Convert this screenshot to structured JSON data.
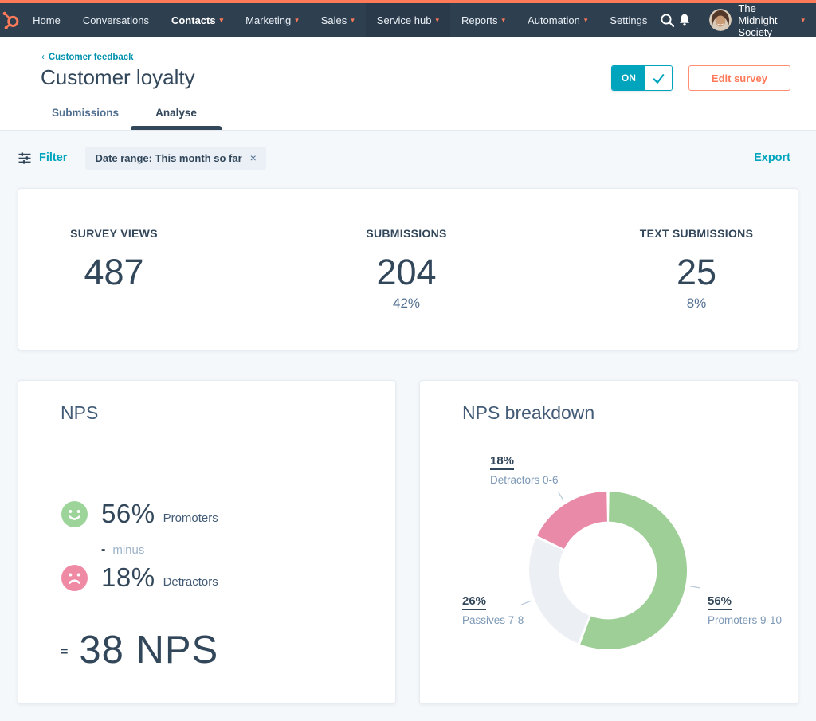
{
  "nav": {
    "caret_glyph": "▾",
    "items": [
      {
        "label": "Home"
      },
      {
        "label": "Conversations"
      },
      {
        "label": "Contacts",
        "caret": true,
        "bold": true
      },
      {
        "label": "Marketing",
        "caret": true
      },
      {
        "label": "Sales",
        "caret": true
      },
      {
        "label": "Service hub",
        "caret": true,
        "active": true
      },
      {
        "label": "Reports",
        "caret": true
      },
      {
        "label": "Automation",
        "caret": true
      },
      {
        "label": "Settings"
      }
    ],
    "account_name": "The Midnight Society"
  },
  "header": {
    "breadcrumb_chevron": "‹",
    "breadcrumb": "Customer feedback",
    "title": "Customer loyalty",
    "toggle_label": "ON",
    "edit_button": "Edit survey",
    "tabs": [
      {
        "label": "Submissions",
        "active": false
      },
      {
        "label": "Analyse",
        "active": true
      }
    ]
  },
  "filter_bar": {
    "filter_label": "Filter",
    "chip": "Date range: This month so far",
    "chip_close": "×",
    "export_label": "Export"
  },
  "stats": [
    {
      "label": "SURVEY VIEWS",
      "value": "487",
      "sub": ""
    },
    {
      "label": "SUBMISSIONS",
      "value": "204",
      "sub": "42%"
    },
    {
      "label": "TEXT SUBMISSIONS",
      "value": "25",
      "sub": "8%"
    }
  ],
  "nps_card": {
    "title": "NPS",
    "promoters_pct": "56%",
    "promoters_label": "Promoters",
    "minus_sign": "-",
    "minus_label": "minus",
    "detractors_pct": "18%",
    "detractors_label": "Detractors",
    "equals_sign": "=",
    "result": "38 NPS"
  },
  "breakdown_card": {
    "title": "NPS breakdown"
  },
  "chart_data": {
    "type": "pie",
    "variant": "donut",
    "title": "NPS breakdown",
    "start_angle_deg": 0,
    "direction": "clockwise",
    "inner_radius_ratio": 0.62,
    "leader_line_color": "#b8c9da",
    "segments": [
      {
        "name": "Promoters",
        "value": 56,
        "label": "56%",
        "sublabel": "Promoters 9-10",
        "color": "#9ecf97"
      },
      {
        "name": "Passives",
        "value": 26,
        "label": "26%",
        "sublabel": "Passives 7-8",
        "color": "#ecf0f4"
      },
      {
        "name": "Detractors",
        "value": 18,
        "label": "18%",
        "sublabel": "Detractors 0-6",
        "color": "#e98ba8"
      }
    ]
  },
  "colors": {
    "brand_orange": "#ff7a59",
    "nav_navy": "#2e3f50",
    "accent_teal": "#00a4bd",
    "breadcrumb_teal": "#0091ae",
    "text_slate": "#33475b",
    "promoter_green": "#9cd49a",
    "detractor_pink": "#ee8aa4",
    "passive_gray": "#ecf0f4"
  }
}
